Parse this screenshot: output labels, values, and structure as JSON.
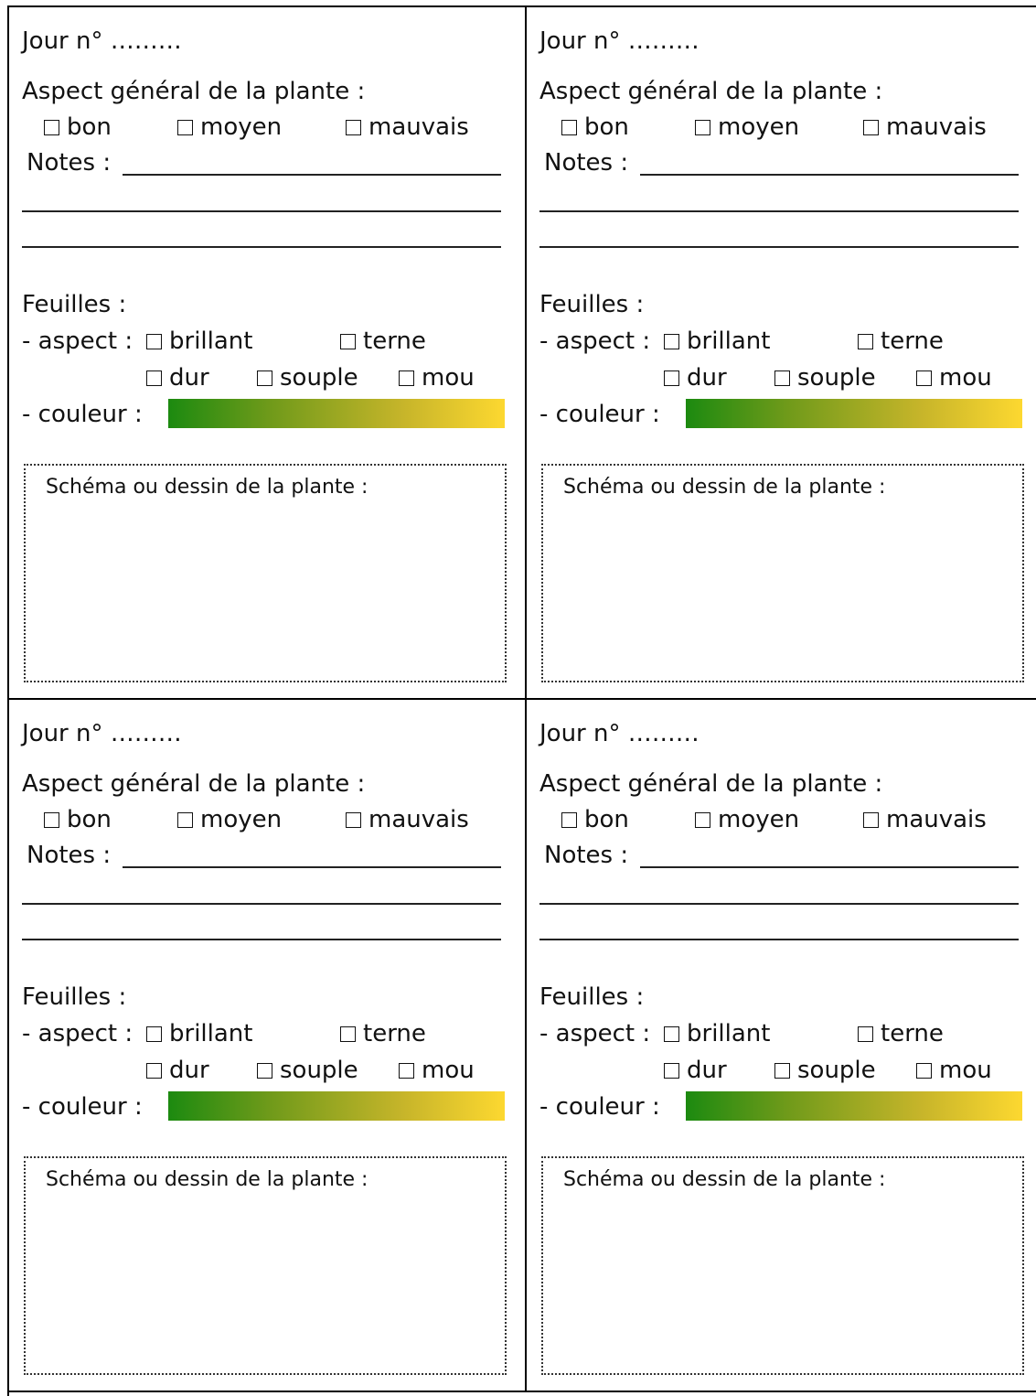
{
  "cards": [
    {
      "day_label": "Jour n° ………",
      "aspect_title": "Aspect général de la plante :",
      "aspect_options": [
        "bon",
        "moyen",
        "mauvais"
      ],
      "notes_label": "Notes :",
      "leaves_title": "Feuilles :",
      "leaf_aspect_label": "- aspect :",
      "leaf_aspect_options": [
        "brillant",
        "terne",
        "dur",
        "souple",
        "mou"
      ],
      "color_label": "- couleur :",
      "sketch_label": "Schéma ou dessin de la plante :"
    },
    {
      "day_label": "Jour n° ………",
      "aspect_title": "Aspect général de la plante :",
      "aspect_options": [
        "bon",
        "moyen",
        "mauvais"
      ],
      "notes_label": "Notes :",
      "leaves_title": "Feuilles :",
      "leaf_aspect_label": "- aspect :",
      "leaf_aspect_options": [
        "brillant",
        "terne",
        "dur",
        "souple",
        "mou"
      ],
      "color_label": "- couleur :",
      "sketch_label": "Schéma ou dessin de la plante :"
    },
    {
      "day_label": "Jour n° ………",
      "aspect_title": "Aspect général de la plante :",
      "aspect_options": [
        "bon",
        "moyen",
        "mauvais"
      ],
      "notes_label": "Notes :",
      "leaves_title": "Feuilles :",
      "leaf_aspect_label": "- aspect :",
      "leaf_aspect_options": [
        "brillant",
        "terne",
        "dur",
        "souple",
        "mou"
      ],
      "color_label": "- couleur :",
      "sketch_label": "Schéma ou dessin de la plante :"
    },
    {
      "day_label": "Jour n° ………",
      "aspect_title": "Aspect général de la plante :",
      "aspect_options": [
        "bon",
        "moyen",
        "mauvais"
      ],
      "notes_label": "Notes :",
      "leaves_title": "Feuilles :",
      "leaf_aspect_label": "- aspect :",
      "leaf_aspect_options": [
        "brillant",
        "terne",
        "dur",
        "souple",
        "mou"
      ],
      "color_label": "- couleur :",
      "sketch_label": "Schéma ou dessin de la plante :"
    }
  ],
  "colors": {
    "scale_start": "#1c8a10",
    "scale_end": "#fdd830"
  }
}
